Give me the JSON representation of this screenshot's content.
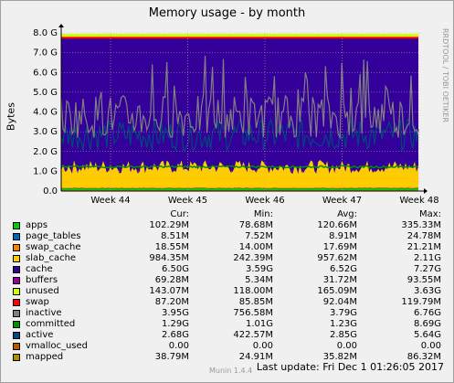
{
  "title": "Memory usage - by month",
  "ylabel": "Bytes",
  "side_label": "RRDTOOL / TOBI OETIKER",
  "chart_data": {
    "type": "area",
    "title": "Memory usage - by month",
    "ylabel": "Bytes",
    "xlabel": "",
    "y_tick_labels": [
      "0.0",
      "1.0 G",
      "2.0 G",
      "3.0 G",
      "4.0 G",
      "5.0 G",
      "6.0 G",
      "7.0 G",
      "8.0 G"
    ],
    "y_tick_values": [
      0,
      1,
      2,
      3,
      4,
      5,
      6,
      7,
      8
    ],
    "ylim": [
      0,
      8
    ],
    "y_unit": "G",
    "x_tick_labels": [
      "Week 44",
      "Week 45",
      "Week 46",
      "Week 47",
      "Week 48"
    ],
    "grid": true,
    "stacked": true,
    "series": [
      {
        "name": "apps",
        "color": "#00cc00",
        "avg": 0.12
      },
      {
        "name": "page_tables",
        "color": "#0066b3",
        "avg": 0.009
      },
      {
        "name": "swap_cache",
        "color": "#ff8000",
        "avg": 0.018
      },
      {
        "name": "slab_cache",
        "color": "#ffcc00",
        "avg": 0.96
      },
      {
        "name": "cache",
        "color": "#330099",
        "avg": 6.52
      },
      {
        "name": "buffers",
        "color": "#990099",
        "avg": 0.032
      },
      {
        "name": "unused",
        "color": "#ccff00",
        "avg": 0.165
      },
      {
        "name": "swap",
        "color": "#ff0000",
        "avg": 0.092
      },
      {
        "name": "inactive",
        "color": "#808080",
        "line": true,
        "avg": 3.79
      },
      {
        "name": "committed",
        "color": "#008f00",
        "line": true,
        "avg": 1.23
      },
      {
        "name": "active",
        "color": "#00487d",
        "line": true,
        "avg": 2.85
      },
      {
        "name": "vmalloc_used",
        "color": "#b35a00",
        "line": true,
        "avg": 0.0
      },
      {
        "name": "mapped",
        "color": "#b38f00",
        "line": true,
        "avg": 0.036
      }
    ]
  },
  "legend": {
    "headers": [
      "Cur:",
      "Min:",
      "Avg:",
      "Max:"
    ],
    "rows": [
      {
        "name": "apps",
        "color": "#00cc00",
        "cur": "102.29M",
        "min": "78.68M",
        "avg": "120.66M",
        "max": "335.33M"
      },
      {
        "name": "page_tables",
        "color": "#0066b3",
        "cur": "8.51M",
        "min": "7.52M",
        "avg": "8.91M",
        "max": "24.78M"
      },
      {
        "name": "swap_cache",
        "color": "#ff8000",
        "cur": "18.55M",
        "min": "14.00M",
        "avg": "17.69M",
        "max": "21.21M"
      },
      {
        "name": "slab_cache",
        "color": "#ffcc00",
        "cur": "984.35M",
        "min": "242.39M",
        "avg": "957.62M",
        "max": "2.11G"
      },
      {
        "name": "cache",
        "color": "#330099",
        "cur": "6.50G",
        "min": "3.59G",
        "avg": "6.52G",
        "max": "7.27G"
      },
      {
        "name": "buffers",
        "color": "#990099",
        "cur": "69.28M",
        "min": "5.34M",
        "avg": "31.72M",
        "max": "93.55M"
      },
      {
        "name": "unused",
        "color": "#ccff00",
        "cur": "143.07M",
        "min": "118.00M",
        "avg": "165.09M",
        "max": "3.63G"
      },
      {
        "name": "swap",
        "color": "#ff0000",
        "cur": "87.20M",
        "min": "85.85M",
        "avg": "92.04M",
        "max": "119.79M"
      },
      {
        "name": "inactive",
        "color": "#808080",
        "cur": "3.95G",
        "min": "756.58M",
        "avg": "3.79G",
        "max": "6.76G"
      },
      {
        "name": "committed",
        "color": "#008f00",
        "cur": "1.29G",
        "min": "1.01G",
        "avg": "1.23G",
        "max": "8.69G"
      },
      {
        "name": "active",
        "color": "#00487d",
        "cur": "2.68G",
        "min": "422.57M",
        "avg": "2.85G",
        "max": "5.64G"
      },
      {
        "name": "vmalloc_used",
        "color": "#b35a00",
        "cur": "0.00",
        "min": "0.00",
        "avg": "0.00",
        "max": "0.00"
      },
      {
        "name": "mapped",
        "color": "#b38f00",
        "cur": "38.79M",
        "min": "24.91M",
        "avg": "35.82M",
        "max": "86.32M"
      }
    ]
  },
  "footer": {
    "munin": "Munin 1.4.4",
    "last_update": "Last update:  Fri Dec  1 01:26:05 2017"
  }
}
